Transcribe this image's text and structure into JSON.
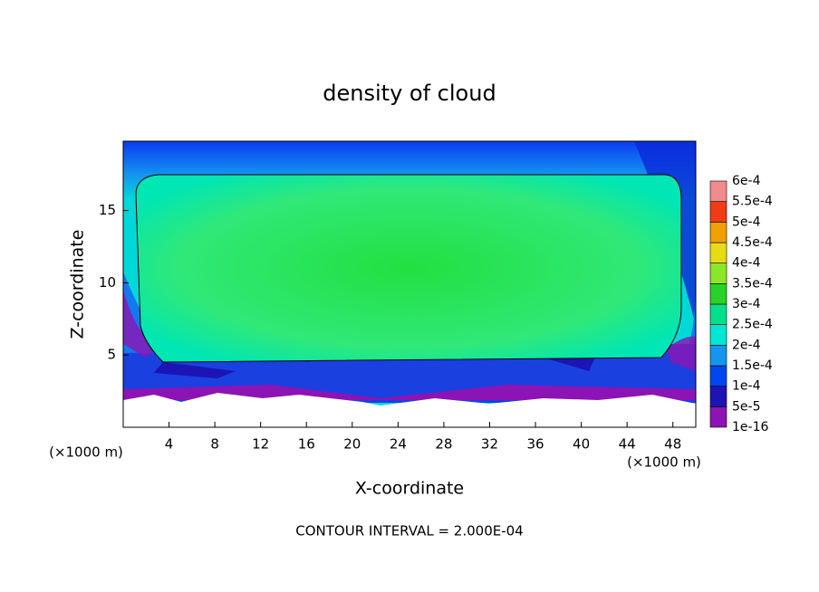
{
  "chart_data": {
    "type": "contour",
    "title": "density of cloud",
    "x_label": "X-coordinate",
    "y_label": "Z-coordinate",
    "x_unit": "(×1000 m)",
    "y_unit": "(×1000 m)",
    "xlim": [
      0,
      50
    ],
    "ylim": [
      0,
      19.8
    ],
    "xticks": [
      4,
      8,
      12,
      16,
      20,
      24,
      28,
      32,
      36,
      40,
      44,
      48
    ],
    "yticks": [
      5,
      10,
      15
    ],
    "annotation": "CONTOUR INTERVAL = 2.000E-04",
    "colorbar": {
      "ticks": [
        {
          "value": 1e-16,
          "label": "1e-16"
        },
        {
          "value": 5e-05,
          "label": "5e-5"
        },
        {
          "value": 0.0001,
          "label": "1e-4"
        },
        {
          "value": 0.00015,
          "label": "1.5e-4"
        },
        {
          "value": 0.0002,
          "label": "2e-4"
        },
        {
          "value": 0.00025,
          "label": "2.5e-4"
        },
        {
          "value": 0.0003,
          "label": "3e-4"
        },
        {
          "value": 0.00035,
          "label": "3.5e-4"
        },
        {
          "value": 0.0004,
          "label": "4e-4"
        },
        {
          "value": 0.00045,
          "label": "4.5e-4"
        },
        {
          "value": 0.0005,
          "label": "5e-4"
        },
        {
          "value": 0.00055,
          "label": "5.5e-4"
        },
        {
          "value": 0.0006,
          "label": "6e-4"
        }
      ],
      "colors": [
        "#8c14b4",
        "#1c14b4",
        "#0046f0",
        "#1496f0",
        "#00e6d2",
        "#00e08c",
        "#28d228",
        "#8ce628",
        "#e6dc14",
        "#f0a000",
        "#f03c14",
        "#f08c8c"
      ]
    }
  }
}
